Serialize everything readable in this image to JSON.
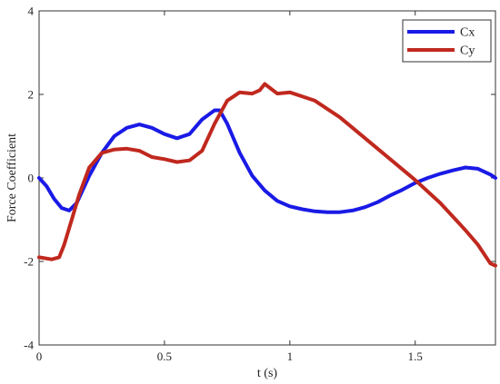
{
  "chart_data": {
    "type": "line",
    "xlabel": "t (s)",
    "ylabel": "Force Coefficient",
    "xlim": [
      0,
      1.82
    ],
    "ylim": [
      -4,
      4
    ],
    "xticks": [
      0,
      0.5,
      1,
      1.5
    ],
    "xtick_labels": [
      "0",
      "0.5",
      "1",
      "1.5"
    ],
    "yticks": [
      -4,
      -2,
      0,
      2,
      4
    ],
    "ytick_labels": [
      "-4",
      "-2",
      "0",
      "2",
      "4"
    ],
    "grid": false,
    "legend_placement": "top-right",
    "series": [
      {
        "name": "Cx",
        "color": "#1a1ae6",
        "x": [
          0,
          0.03,
          0.06,
          0.09,
          0.12,
          0.15,
          0.2,
          0.25,
          0.3,
          0.35,
          0.4,
          0.45,
          0.5,
          0.55,
          0.6,
          0.65,
          0.7,
          0.72,
          0.75,
          0.8,
          0.85,
          0.9,
          0.95,
          1.0,
          1.05,
          1.1,
          1.15,
          1.2,
          1.25,
          1.3,
          1.35,
          1.4,
          1.45,
          1.5,
          1.55,
          1.6,
          1.65,
          1.7,
          1.75,
          1.8,
          1.82
        ],
        "y": [
          0,
          -0.2,
          -0.5,
          -0.72,
          -0.78,
          -0.6,
          0.05,
          0.6,
          1.0,
          1.2,
          1.28,
          1.2,
          1.05,
          0.95,
          1.05,
          1.4,
          1.62,
          1.62,
          1.3,
          0.6,
          0.05,
          -0.3,
          -0.55,
          -0.68,
          -0.75,
          -0.8,
          -0.82,
          -0.82,
          -0.78,
          -0.7,
          -0.58,
          -0.42,
          -0.28,
          -0.12,
          0.0,
          0.1,
          0.18,
          0.25,
          0.22,
          0.08,
          0.0
        ]
      },
      {
        "name": "Cy",
        "color": "#c0281e",
        "x": [
          0,
          0.05,
          0.08,
          0.1,
          0.13,
          0.16,
          0.2,
          0.25,
          0.3,
          0.35,
          0.4,
          0.45,
          0.5,
          0.55,
          0.6,
          0.65,
          0.7,
          0.75,
          0.8,
          0.85,
          0.88,
          0.9,
          0.95,
          1.0,
          1.1,
          1.2,
          1.3,
          1.4,
          1.5,
          1.6,
          1.7,
          1.75,
          1.8,
          1.82
        ],
        "y": [
          -1.9,
          -1.95,
          -1.9,
          -1.6,
          -1.0,
          -0.4,
          0.25,
          0.6,
          0.68,
          0.7,
          0.65,
          0.5,
          0.45,
          0.38,
          0.42,
          0.65,
          1.3,
          1.85,
          2.05,
          2.02,
          2.1,
          2.25,
          2.02,
          2.05,
          1.85,
          1.45,
          0.95,
          0.45,
          -0.05,
          -0.6,
          -1.25,
          -1.6,
          -2.05,
          -2.1
        ]
      }
    ]
  }
}
